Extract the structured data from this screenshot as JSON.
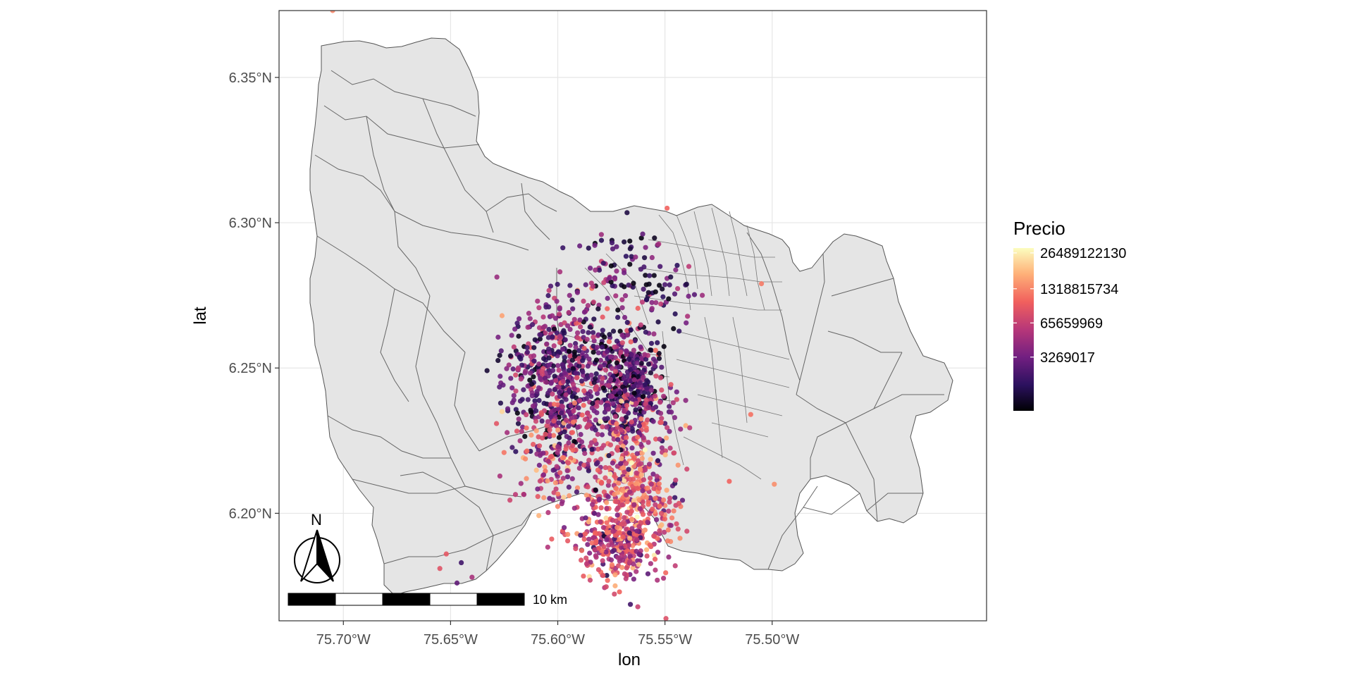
{
  "chart_data": {
    "type": "scatter",
    "title": "",
    "xlabel": "lon",
    "ylabel": "lat",
    "xlim": [
      -75.73,
      -75.4
    ],
    "ylim": [
      6.163,
      6.373
    ],
    "grid": true,
    "x_ticks": [
      {
        "value": -75.7,
        "label": "75.70°W"
      },
      {
        "value": -75.65,
        "label": "75.65°W"
      },
      {
        "value": -75.6,
        "label": "75.60°W"
      },
      {
        "value": -75.55,
        "label": "75.55°W"
      },
      {
        "value": -75.5,
        "label": "75.50°W"
      }
    ],
    "y_ticks": [
      {
        "value": 6.2,
        "label": "6.20°N"
      },
      {
        "value": 6.25,
        "label": "6.25°N"
      },
      {
        "value": 6.3,
        "label": "6.30°N"
      },
      {
        "value": 6.35,
        "label": "6.35°N"
      }
    ],
    "legend": {
      "title": "Precio",
      "position": "right",
      "scale": "log",
      "labels": [
        "26489122130",
        "1318815734",
        "65659969",
        "3269017"
      ],
      "colors": [
        "#000004",
        "#2c115f",
        "#721f81",
        "#b73779",
        "#f1605d",
        "#feb078",
        "#fcfdbf"
      ]
    },
    "north_arrow_label": "N",
    "scale_bar_label": "10 km",
    "basemap_fill": "#e5e5e5",
    "basemap_stroke": "#555555",
    "points_note": "Several thousand property listings, concentrated around lon -75.61…-75.54, lat 6.18…6.29",
    "points": [
      {
        "lon": -75.705,
        "lat": 6.373,
        "price": 1300000000
      },
      {
        "lon": -75.626,
        "lat": 6.268,
        "price": 2500000000
      },
      {
        "lon": -75.626,
        "lat": 6.235,
        "price": 9000000000
      },
      {
        "lon": -75.505,
        "lat": 6.279,
        "price": 900000000
      },
      {
        "lon": -75.51,
        "lat": 6.234,
        "price": 700000000
      },
      {
        "lon": -75.52,
        "lat": 6.211,
        "price": 500000000
      },
      {
        "lon": -75.499,
        "lat": 6.21,
        "price": 1500000000
      },
      {
        "lon": -75.549,
        "lat": 6.305,
        "price": 500000000
      },
      {
        "lon": -75.556,
        "lat": 6.288,
        "price": 20000000
      },
      {
        "lon": -75.652,
        "lat": 6.186,
        "price": 300000000
      },
      {
        "lon": -75.645,
        "lat": 6.183,
        "price": 2000000
      },
      {
        "lon": -75.64,
        "lat": 6.178,
        "price": 40000000
      },
      {
        "lon": -75.647,
        "lat": 6.176,
        "price": 5000000
      },
      {
        "lon": -75.655,
        "lat": 6.181,
        "price": 250000000
      }
    ]
  }
}
